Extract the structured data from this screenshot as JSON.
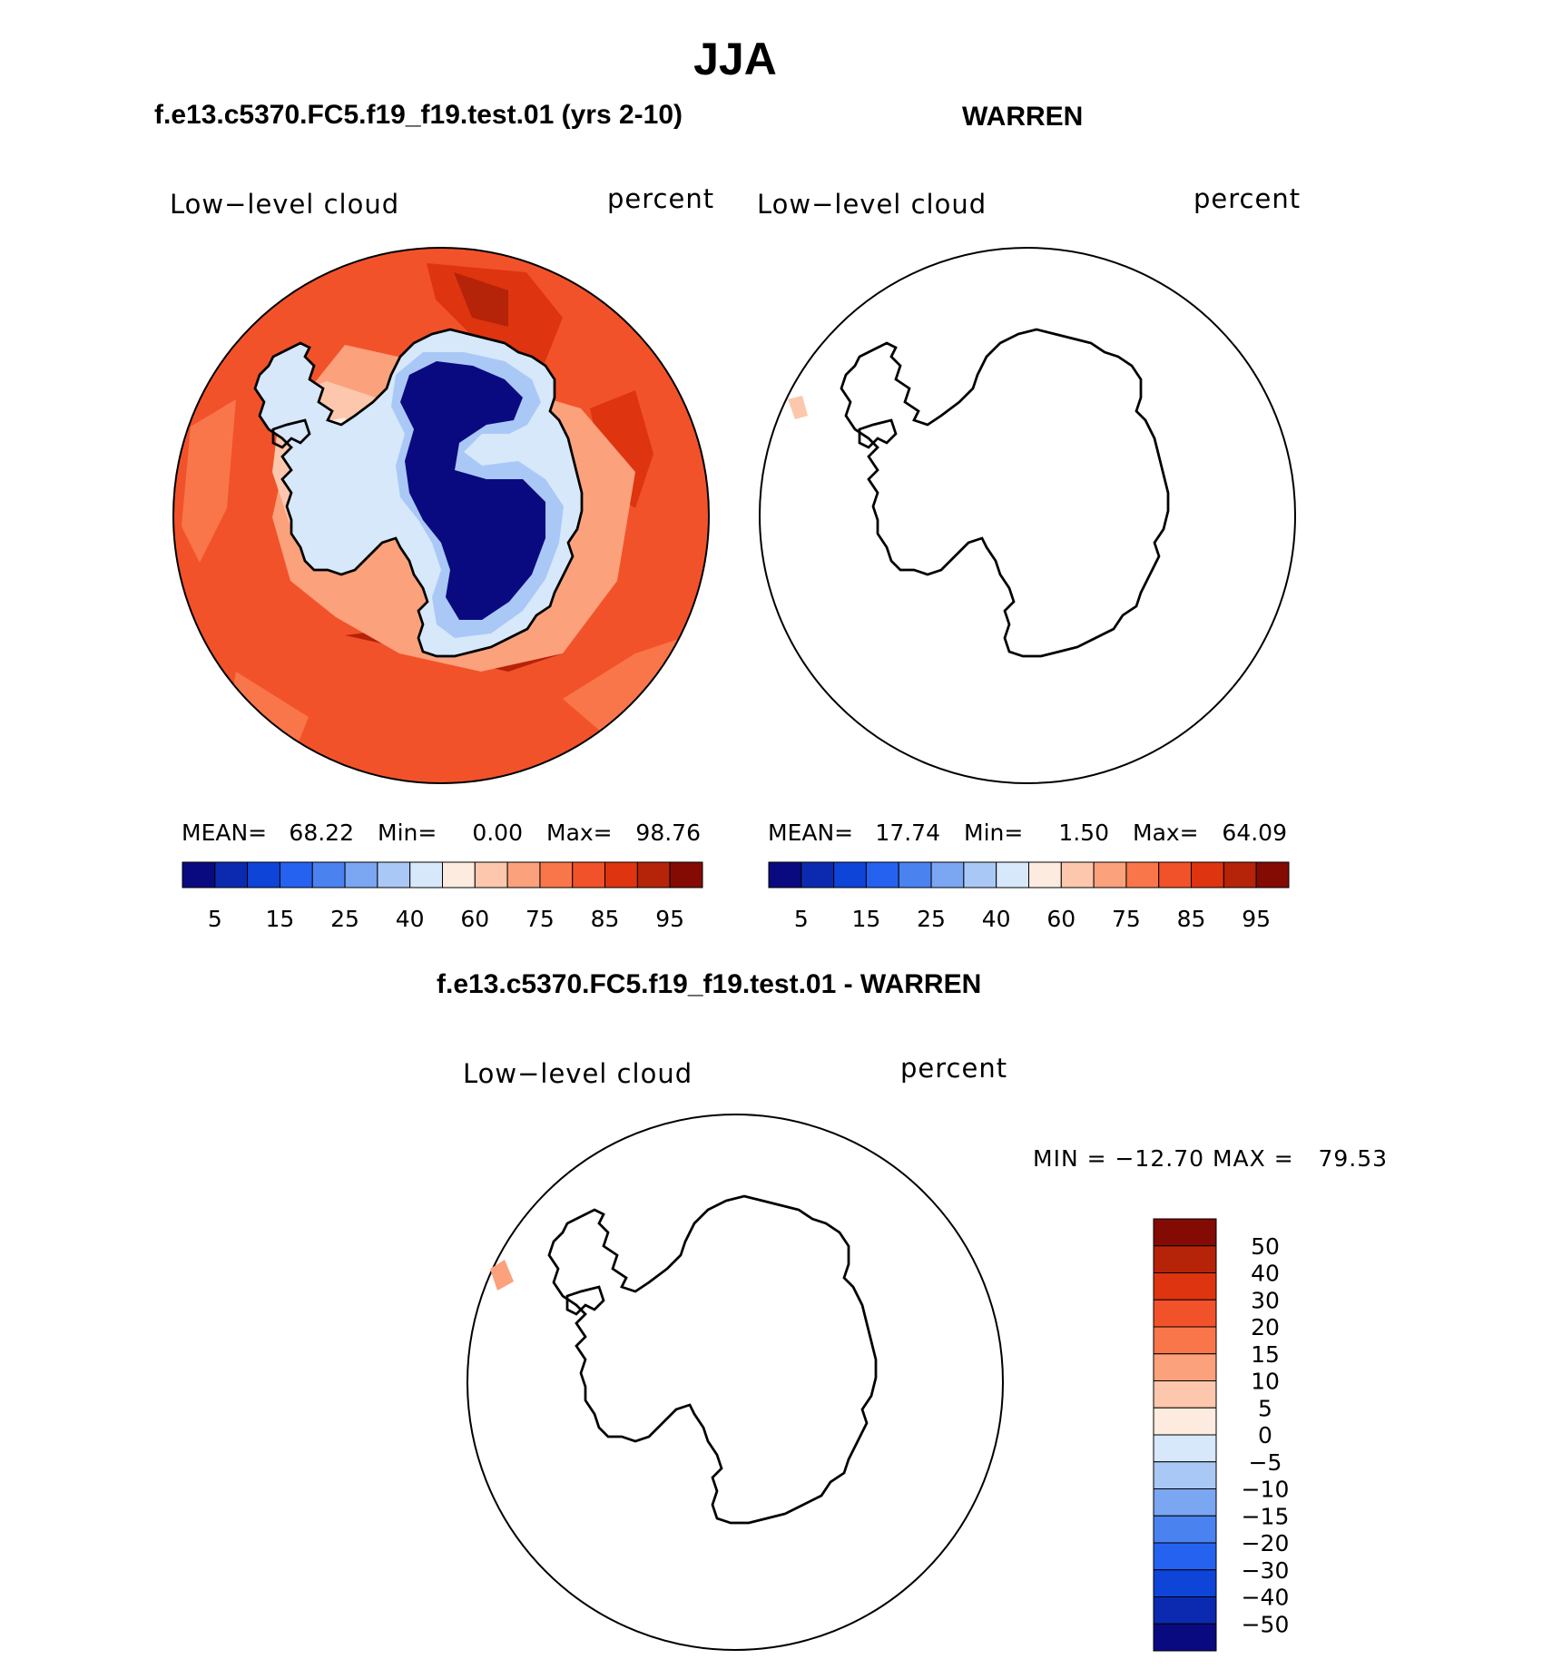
{
  "title": "JJA",
  "panels": [
    {
      "case_title": "f.e13.c5370.FC5.f19_f19.test.01 (yrs 2-10)",
      "variable": "Low−level cloud",
      "units": "percent",
      "stats": {
        "mean_label": "MEAN=",
        "mean": "68.22",
        "min_label": "Min=",
        "min": "0.00",
        "max_label": "Max=",
        "max": "98.76"
      }
    },
    {
      "case_title": "WARREN",
      "variable": "Low−level cloud",
      "units": "percent",
      "stats": {
        "mean_label": "MEAN=",
        "mean": "17.74",
        "min_label": "Min=",
        "min": "1.50",
        "max_label": "Max=",
        "max": "64.09"
      }
    }
  ],
  "diff_panel": {
    "case_title": "f.e13.c5370.FC5.f19_f19.test.01 - WARREN",
    "variable": "Low−level cloud",
    "units": "percent",
    "minmax": "MIN = −12.70 MAX =   79.53"
  },
  "chart_data": [
    {
      "type": "heatmap",
      "projection": "south-polar-stereographic",
      "title": "f.e13.c5370.FC5.f19_f19.test.01 (yrs 2-10)",
      "variable": "Low-level cloud",
      "units": "percent",
      "stats": {
        "mean": 68.22,
        "min": 0.0,
        "max": 98.76
      },
      "colorbar": {
        "orientation": "horizontal",
        "levels": [
          5,
          10,
          15,
          20,
          25,
          30,
          40,
          50,
          60,
          70,
          75,
          80,
          85,
          90,
          95
        ],
        "tick_labels": [
          "5",
          "15",
          "25",
          "40",
          "60",
          "75",
          "85",
          "95"
        ],
        "colors": [
          "#0a0a80",
          "#0b2ab0",
          "#0f44d8",
          "#2662f0",
          "#4a82f0",
          "#7aa6f2",
          "#aac8f6",
          "#d6e8fa",
          "#fdebdf",
          "#fcc7ac",
          "#fba17c",
          "#f8764a",
          "#f2522a",
          "#de3410",
          "#b52308",
          "#830b04"
        ]
      },
      "description_regions": {
        "interior_antarctica": "<5",
        "coast_and_shelves": "25-75",
        "southern_ocean": "75-95"
      }
    },
    {
      "type": "heatmap",
      "projection": "south-polar-stereographic",
      "title": "WARREN",
      "variable": "Low-level cloud",
      "units": "percent",
      "stats": {
        "mean": 17.74,
        "min": 1.5,
        "max": 64.09
      },
      "colorbar": {
        "orientation": "horizontal",
        "levels": [
          5,
          10,
          15,
          20,
          25,
          30,
          40,
          50,
          60,
          70,
          75,
          80,
          85,
          90,
          95
        ],
        "tick_labels": [
          "5",
          "15",
          "25",
          "40",
          "60",
          "75",
          "85",
          "95"
        ],
        "colors": [
          "#0a0a80",
          "#0b2ab0",
          "#0f44d8",
          "#2662f0",
          "#4a82f0",
          "#7aa6f2",
          "#aac8f6",
          "#d6e8fa",
          "#fdebdf",
          "#fcc7ac",
          "#fba17c",
          "#f8764a",
          "#f2522a",
          "#de3410",
          "#b52308",
          "#830b04"
        ]
      }
    },
    {
      "type": "heatmap",
      "projection": "south-polar-stereographic",
      "title": "f.e13.c5370.FC5.f19_f19.test.01 - WARREN",
      "variable": "Low-level cloud",
      "units": "percent",
      "stats": {
        "min": -12.7,
        "max": 79.53
      },
      "colorbar": {
        "orientation": "vertical",
        "tick_labels": [
          "50",
          "40",
          "30",
          "20",
          "15",
          "10",
          "5",
          "0",
          "−5",
          "−10",
          "−15",
          "−20",
          "−30",
          "−40",
          "−50"
        ],
        "colors": [
          "#830b04",
          "#b52308",
          "#de3410",
          "#f2522a",
          "#f8764a",
          "#fba17c",
          "#fcc7ac",
          "#fdebdf",
          "#d6e8fa",
          "#aac8f6",
          "#7aa6f2",
          "#4a82f0",
          "#2662f0",
          "#0f44d8",
          "#0b2ab0",
          "#0a0a80"
        ]
      }
    }
  ]
}
